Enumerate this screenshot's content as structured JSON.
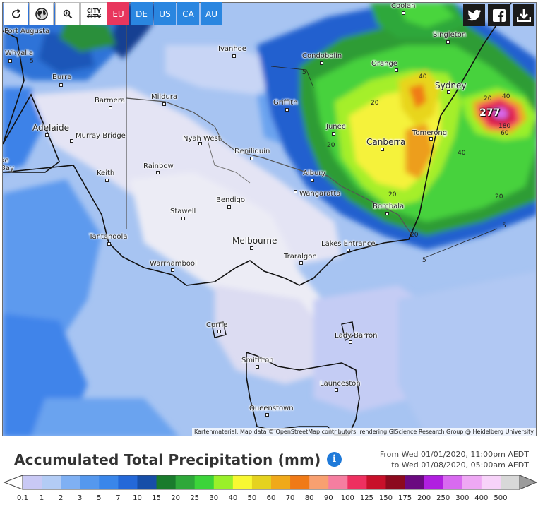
{
  "toolbar": {
    "city_label_top": "CITY",
    "city_label_bottom": "CITY",
    "langs": [
      "EU",
      "DE",
      "US",
      "CA",
      "AU"
    ],
    "active_lang": "EU"
  },
  "map": {
    "places": [
      {
        "name": "Coolah"
      },
      {
        "name": "Port Augusta"
      },
      {
        "name": "Singleton"
      },
      {
        "name": "Whyalla"
      },
      {
        "name": "Ivanhoe"
      },
      {
        "name": "Condobolin"
      },
      {
        "name": "Orange"
      },
      {
        "name": "Burra"
      },
      {
        "name": "Sydney"
      },
      {
        "name": "Barmera"
      },
      {
        "name": "Mildura"
      },
      {
        "name": "Griffith"
      },
      {
        "name": "Adelaide"
      },
      {
        "name": "Murray Bridge"
      },
      {
        "name": "Junee"
      },
      {
        "name": "Tomerong"
      },
      {
        "name": "Nyah West"
      },
      {
        "name": "Canberra"
      },
      {
        "name": "Deniliquin"
      },
      {
        "name": "Keith"
      },
      {
        "name": "Rainbow"
      },
      {
        "name": "Albury"
      },
      {
        "name": "Wangaratta"
      },
      {
        "name": "Bendigo"
      },
      {
        "name": "Bombala"
      },
      {
        "name": "Stawell"
      },
      {
        "name": "Tantanoola"
      },
      {
        "name": "Melbourne"
      },
      {
        "name": "Lakes Entrance"
      },
      {
        "name": "Traralgon"
      },
      {
        "name": "Warrnambool"
      },
      {
        "name": "Currie"
      },
      {
        "name": "Lady Barron"
      },
      {
        "name": "Smithton"
      },
      {
        "name": "Launceston"
      },
      {
        "name": "Queenstown"
      },
      {
        "name": "Yorke"
      },
      {
        "name": "Bay"
      }
    ],
    "contour_labels": [
      "5",
      "5",
      "40",
      "40",
      "20",
      "20",
      "20",
      "20",
      "20",
      "5",
      "5",
      "20",
      "40",
      "180",
      "60"
    ],
    "max_value": "277",
    "attribution": "Kartenmaterial: Map data © OpenStreetMap contributors, rendering GIScience Research Group @ Heidelberg University"
  },
  "legend": {
    "title": "Accumulated Total Precipitation (mm)",
    "period_from": "From Wed 01/01/2020, 11:00pm AEDT",
    "period_to": "to Wed 01/08/2020, 05:00am AEDT",
    "ticks": [
      "0.1",
      "1",
      "2",
      "3",
      "5",
      "7",
      "10",
      "15",
      "20",
      "25",
      "30",
      "40",
      "50",
      "60",
      "70",
      "80",
      "90",
      "100",
      "125",
      "150",
      "175",
      "200",
      "250",
      "300",
      "400",
      "500"
    ],
    "colors": [
      "#c9c9f5",
      "#b3ccf5",
      "#7fb0f3",
      "#5598ee",
      "#3a86ea",
      "#2468d8",
      "#174ea8",
      "#1a7b2d",
      "#2ea83a",
      "#3cd43a",
      "#9af02a",
      "#f8f832",
      "#e5d21f",
      "#f0a91a",
      "#f07a17",
      "#f8a070",
      "#f57ea0",
      "#ee3060",
      "#c8102a",
      "#8c0a1e",
      "#6a0a80",
      "#b01fe0",
      "#d86af0",
      "#eea8f4",
      "#f7d3f9",
      "#d8d8d8"
    ]
  }
}
